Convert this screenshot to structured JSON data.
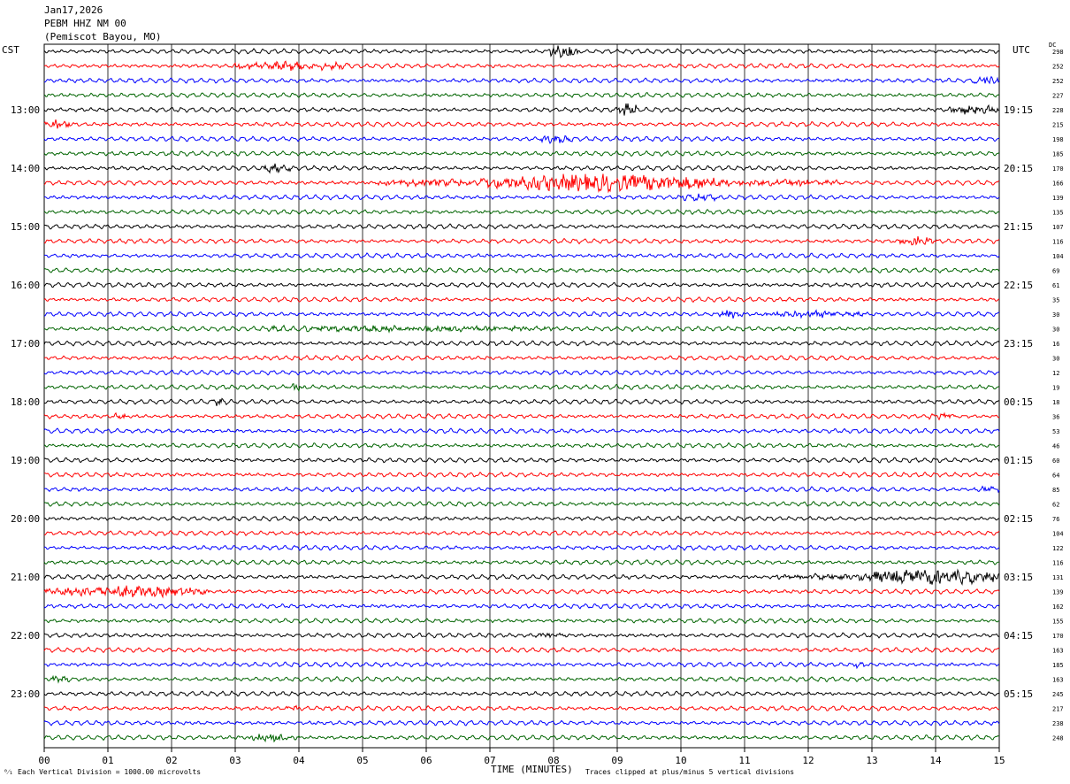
{
  "header": {
    "date": "Jan17,2026",
    "station": "PEBM HHZ NM 00",
    "location": "(Pemiscot Bayou, MO)"
  },
  "left_tz": "CST",
  "right_tz": "UTC",
  "dc_header": "DC",
  "footer": {
    "scale": "Each Vertical Division = 1000.00 microvolts",
    "clip": "Traces clipped at plus/minus 5 vertical divisions",
    "corner_mark": "⁰⁄₁"
  },
  "colors": {
    "trace_cycle": [
      "#000000",
      "#ff0000",
      "#0000ff",
      "#006400"
    ],
    "grid": "#000000",
    "background": "#ffffff"
  },
  "chart_data": {
    "type": "seismogram-helicorder",
    "xlabel": "TIME (MINUTES)",
    "x_ticks": [
      "00",
      "01",
      "02",
      "03",
      "04",
      "05",
      "06",
      "07",
      "08",
      "09",
      "10",
      "11",
      "12",
      "13",
      "14",
      "15"
    ],
    "xlim": [
      0,
      15
    ],
    "minutes_per_line": 15,
    "lines_per_hour": 4,
    "left_hour_labels": [
      "13:00",
      "14:00",
      "15:00",
      "16:00",
      "17:00",
      "18:00",
      "19:00",
      "20:00",
      "21:00",
      "22:00",
      "23:00"
    ],
    "right_hour_labels": [
      "19:15",
      "20:15",
      "21:15",
      "22:15",
      "23:15",
      "00:15",
      "01:15",
      "02:15",
      "03:15",
      "04:15",
      "05:15"
    ],
    "dc_offsets": [
      298,
      252,
      252,
      227,
      228,
      215,
      198,
      185,
      170,
      166,
      139,
      135,
      107,
      116,
      104,
      69,
      61,
      35,
      30,
      30,
      16,
      30,
      12,
      19,
      18,
      36,
      53,
      46,
      60,
      64,
      85,
      62,
      76,
      104,
      122,
      116,
      131,
      139,
      162,
      155,
      170,
      163,
      185,
      163,
      245,
      217,
      238,
      248
    ],
    "events": [
      {
        "line": 0,
        "start_min": 7.9,
        "end_min": 8.4,
        "amplitude": 3.5
      },
      {
        "line": 1,
        "start_min": 3.0,
        "end_min": 4.8,
        "amplitude": 2.2
      },
      {
        "line": 2,
        "start_min": 14.6,
        "end_min": 15.0,
        "amplitude": 3.0
      },
      {
        "line": 4,
        "start_min": 9.0,
        "end_min": 9.3,
        "amplitude": 5.0
      },
      {
        "line": 4,
        "start_min": 14.2,
        "end_min": 15.0,
        "amplitude": 2.5
      },
      {
        "line": 5,
        "start_min": 0.0,
        "end_min": 0.4,
        "amplitude": 2.5
      },
      {
        "line": 6,
        "start_min": 7.8,
        "end_min": 8.3,
        "amplitude": 2.0
      },
      {
        "line": 8,
        "start_min": 3.4,
        "end_min": 3.9,
        "amplitude": 2.0
      },
      {
        "line": 9,
        "start_min": 5.2,
        "end_min": 6.8,
        "amplitude": 2.0
      },
      {
        "line": 9,
        "start_min": 6.8,
        "end_min": 10.8,
        "amplitude": 5.0
      },
      {
        "line": 9,
        "start_min": 10.8,
        "end_min": 12.5,
        "amplitude": 1.8
      },
      {
        "line": 10,
        "start_min": 10.0,
        "end_min": 10.6,
        "amplitude": 1.8
      },
      {
        "line": 13,
        "start_min": 13.4,
        "end_min": 14.0,
        "amplitude": 2.2
      },
      {
        "line": 18,
        "start_min": 10.6,
        "end_min": 11.0,
        "amplitude": 2.5
      },
      {
        "line": 18,
        "start_min": 11.3,
        "end_min": 12.9,
        "amplitude": 1.6
      },
      {
        "line": 19,
        "start_min": 3.5,
        "end_min": 8.0,
        "amplitude": 1.6
      },
      {
        "line": 23,
        "start_min": 3.8,
        "end_min": 4.1,
        "amplitude": 2.0
      },
      {
        "line": 24,
        "start_min": 2.6,
        "end_min": 2.9,
        "amplitude": 1.8
      },
      {
        "line": 25,
        "start_min": 1.1,
        "end_min": 1.3,
        "amplitude": 2.0
      },
      {
        "line": 25,
        "start_min": 13.9,
        "end_min": 14.3,
        "amplitude": 2.0
      },
      {
        "line": 30,
        "start_min": 14.6,
        "end_min": 15.0,
        "amplitude": 1.8
      },
      {
        "line": 36,
        "start_min": 11.5,
        "end_min": 12.8,
        "amplitude": 1.5
      },
      {
        "line": 36,
        "start_min": 12.8,
        "end_min": 15.0,
        "amplitude": 4.5
      },
      {
        "line": 37,
        "start_min": 0.0,
        "end_min": 2.6,
        "amplitude": 3.0
      },
      {
        "line": 40,
        "start_min": 7.7,
        "end_min": 8.2,
        "amplitude": 1.6
      },
      {
        "line": 42,
        "start_min": 12.7,
        "end_min": 12.9,
        "amplitude": 2.0
      },
      {
        "line": 43,
        "start_min": 0.1,
        "end_min": 0.4,
        "amplitude": 2.5
      },
      {
        "line": 45,
        "start_min": 3.8,
        "end_min": 4.0,
        "amplitude": 1.6
      },
      {
        "line": 47,
        "start_min": 3.2,
        "end_min": 4.0,
        "amplitude": 2.0
      }
    ]
  }
}
